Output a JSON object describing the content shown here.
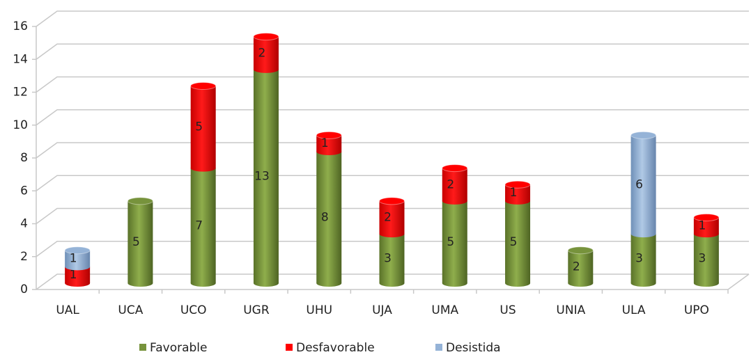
{
  "chart_data": {
    "type": "bar",
    "stacked": true,
    "categories": [
      "UAL",
      "UCA",
      "UCO",
      "UGR",
      "UHU",
      "UJA",
      "UMA",
      "US",
      "UNIA",
      "ULA",
      "UPO"
    ],
    "series": [
      {
        "name": "Favorable",
        "color": "#77933c",
        "values": [
          0,
          5,
          7,
          13,
          8,
          3,
          5,
          5,
          2,
          3,
          3
        ]
      },
      {
        "name": "Desfavorable",
        "color": "#ff0000",
        "values": [
          1,
          0,
          5,
          2,
          1,
          2,
          2,
          1,
          0,
          0,
          1
        ]
      },
      {
        "name": "Desistida",
        "color": "#95b3d7",
        "values": [
          1,
          0,
          0,
          0,
          0,
          0,
          0,
          0,
          0,
          6,
          0
        ]
      }
    ],
    "ylim": [
      0,
      16
    ],
    "yticks": [
      0,
      2,
      4,
      6,
      8,
      10,
      12,
      14,
      16
    ],
    "grid": true,
    "legend": "bottom"
  }
}
